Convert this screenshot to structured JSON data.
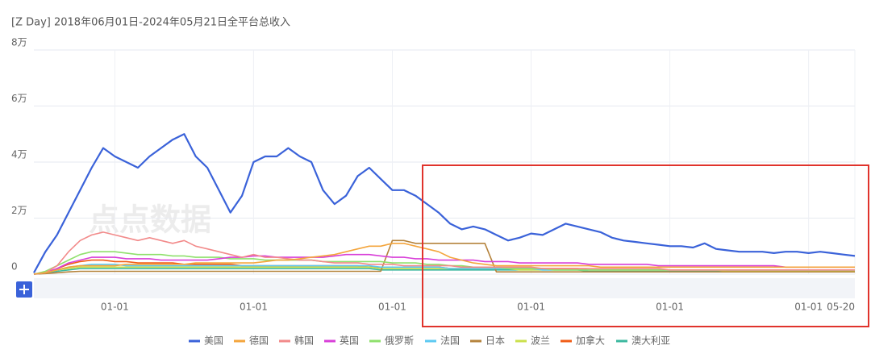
{
  "chart_data": {
    "type": "line",
    "title": "[Z Day]  2018年06月01日-2024年05月21日全平台总收入",
    "watermark": "点点数据",
    "categories": [
      null,
      null,
      null,
      null,
      null,
      null,
      null,
      "01-01",
      null,
      null,
      null,
      null,
      null,
      null,
      null,
      null,
      null,
      null,
      null,
      "01-01",
      null,
      null,
      null,
      null,
      null,
      null,
      null,
      null,
      null,
      null,
      null,
      "01-01",
      null,
      null,
      null,
      null,
      null,
      null,
      null,
      null,
      null,
      null,
      null,
      "01-01",
      null,
      null,
      null,
      null,
      null,
      null,
      null,
      null,
      null,
      null,
      null,
      "01-01",
      null,
      null,
      null,
      null,
      null,
      null,
      null,
      null,
      null,
      null,
      null,
      "01-01",
      null,
      null,
      null,
      "05-20"
    ],
    "ylim": [
      0,
      80000
    ],
    "yticks": [
      0,
      {
        "value": 20000,
        "label": "2万"
      },
      {
        "value": 40000,
        "label": "4万"
      },
      {
        "value": 60000,
        "label": "6万"
      },
      {
        "value": 80000,
        "label": "8万"
      }
    ],
    "grid": true,
    "legend": "bottom",
    "series": [
      {
        "name": "美国",
        "color": "#3a62d9",
        "values": [
          500,
          8000,
          14000,
          22000,
          30000,
          38000,
          45000,
          42000,
          40000,
          38000,
          42000,
          45000,
          48000,
          50000,
          42000,
          38000,
          30000,
          22000,
          28000,
          40000,
          42000,
          42000,
          45000,
          42000,
          40000,
          30000,
          25000,
          28000,
          35000,
          38000,
          34000,
          30000,
          30000,
          28000,
          25000,
          22000,
          18000,
          16000,
          17000,
          16000,
          14000,
          12000,
          13000,
          14500,
          14000,
          16000,
          18000,
          17000,
          16000,
          15000,
          13000,
          12000,
          11500,
          11000,
          10500,
          10000,
          10000,
          9500,
          11000,
          9000,
          8500,
          8000,
          8000,
          8000,
          7500,
          8000,
          8000,
          7500,
          8000,
          7500,
          7000,
          6500
        ]
      },
      {
        "name": "德国",
        "color": "#f4a53c",
        "values": [
          0,
          500,
          1500,
          2500,
          3000,
          3000,
          3000,
          3000,
          3500,
          3500,
          3500,
          3500,
          3500,
          3500,
          4000,
          4000,
          4000,
          4000,
          4000,
          4000,
          4500,
          5000,
          5000,
          5500,
          6000,
          6500,
          7000,
          8000,
          9000,
          10000,
          10000,
          11000,
          11000,
          10000,
          9000,
          8000,
          6000,
          5000,
          4000,
          3500,
          3000,
          3000,
          3000,
          3000,
          3000,
          3000,
          3000,
          3000,
          3000,
          2500,
          2500,
          2500,
          2500,
          2500,
          2500,
          2500,
          2500,
          2500,
          2500,
          2500,
          2500,
          2500,
          2500,
          2500,
          2500,
          2500,
          2500,
          2500,
          2500,
          2500,
          2500,
          2500
        ]
      },
      {
        "name": "韩国",
        "color": "#f28a8a",
        "values": [
          0,
          500,
          3000,
          8000,
          12000,
          14000,
          15000,
          14000,
          13000,
          12000,
          13000,
          12000,
          11000,
          12000,
          10000,
          9000,
          8000,
          7000,
          6000,
          7000,
          6000,
          6000,
          5500,
          5000,
          5000,
          4500,
          4000,
          4000,
          4000,
          3500,
          3500,
          3500,
          3000,
          3000,
          3000,
          3000,
          3000,
          2500,
          2500,
          2500,
          2500,
          2500,
          2500,
          2500,
          2000,
          2000,
          2000,
          2000,
          2000,
          2000,
          2000,
          2000,
          2000,
          2000,
          2000,
          1500,
          1500,
          1500,
          1500,
          1500,
          1500,
          1500,
          1500,
          1500,
          1500,
          1500,
          1500,
          1500,
          1500,
          1500,
          1500,
          1500
        ]
      },
      {
        "name": "英国",
        "color": "#d83fd8",
        "values": [
          0,
          500,
          2000,
          4000,
          5000,
          6000,
          6000,
          6000,
          5500,
          5500,
          5500,
          5000,
          5000,
          5000,
          5000,
          5000,
          5500,
          6000,
          6000,
          6500,
          6500,
          6000,
          6000,
          6000,
          6000,
          6000,
          6500,
          7000,
          7000,
          7000,
          6500,
          6000,
          6000,
          5500,
          5500,
          5000,
          5000,
          5000,
          5000,
          4500,
          4500,
          4500,
          4000,
          4000,
          4000,
          4000,
          4000,
          4000,
          3500,
          3500,
          3500,
          3500,
          3500,
          3500,
          3000,
          3000,
          3000,
          3000,
          3000,
          3000,
          3000,
          3000,
          3000,
          3000,
          3000,
          2500,
          2500,
          2500,
          2500,
          2500,
          2500,
          2500
        ]
      },
      {
        "name": "俄罗斯",
        "color": "#8fe06c",
        "values": [
          0,
          1000,
          3000,
          5000,
          7000,
          8000,
          8000,
          8000,
          7500,
          7000,
          7000,
          7000,
          6500,
          6500,
          6000,
          6000,
          6000,
          5500,
          5500,
          5500,
          5000,
          5000,
          5000,
          5000,
          5000,
          4500,
          4500,
          4500,
          4500,
          4500,
          4500,
          4000,
          4000,
          4000,
          3500,
          3500,
          3000,
          3000,
          2500,
          2500,
          2500,
          2000,
          2000,
          2000,
          2000,
          1500,
          1500,
          1500,
          1500,
          1500,
          1500,
          1500,
          1500,
          1500,
          1500,
          1500,
          1500,
          1500,
          1500,
          1500,
          1500,
          1500,
          1500,
          1500,
          1500,
          1500,
          1500,
          1500,
          1500,
          1500,
          1500,
          1500
        ]
      },
      {
        "name": "法国",
        "color": "#5cc9f2",
        "values": [
          0,
          500,
          1500,
          2500,
          3000,
          3500,
          3500,
          3500,
          3000,
          3000,
          3000,
          3000,
          3000,
          3000,
          3000,
          3000,
          3000,
          3000,
          3000,
          3000,
          3000,
          3000,
          3000,
          3000,
          3000,
          3000,
          3000,
          3000,
          3000,
          3000,
          2500,
          2500,
          2500,
          2500,
          2500,
          2500,
          2000,
          2000,
          2000,
          2000,
          2000,
          2000,
          2000,
          2000,
          1500,
          1500,
          1500,
          1500,
          1500,
          1500,
          1500,
          1500,
          1500,
          1500,
          1500,
          1500,
          1500,
          1500,
          1500,
          1500,
          1500,
          1500,
          1500,
          1500,
          1500,
          1500,
          1500,
          1500,
          1500,
          1500,
          1500,
          1500
        ]
      },
      {
        "name": "日本",
        "color": "#b5833c",
        "values": [
          0,
          200,
          500,
          800,
          1000,
          1000,
          1000,
          1000,
          1000,
          1000,
          1000,
          1000,
          1000,
          1000,
          1000,
          1000,
          1000,
          1000,
          1000,
          1000,
          1000,
          1000,
          1000,
          1000,
          1000,
          1000,
          1000,
          1000,
          1000,
          1000,
          1000,
          12000,
          12000,
          11000,
          11000,
          11000,
          11000,
          11000,
          11000,
          11000,
          800,
          800,
          800,
          800,
          800,
          800,
          800,
          800,
          800,
          800,
          800,
          800,
          800,
          800,
          800,
          800,
          800,
          800,
          800,
          800,
          800,
          800,
          800,
          800,
          800,
          800,
          800,
          800,
          800,
          800,
          800,
          800
        ]
      },
      {
        "name": "波兰",
        "color": "#cbe04c",
        "values": [
          0,
          500,
          1500,
          2000,
          2500,
          2500,
          2500,
          2500,
          2500,
          2500,
          2500,
          2500,
          2500,
          2500,
          2500,
          2500,
          2500,
          2500,
          2500,
          2500,
          2500,
          2500,
          2500,
          2500,
          2500,
          2500,
          2500,
          2500,
          2500,
          2500,
          2000,
          2000,
          2000,
          2000,
          2000,
          2000,
          2000,
          2000,
          2000,
          2000,
          2000,
          2000,
          1500,
          1500,
          1500,
          1500,
          1500,
          1500,
          1500,
          1500,
          1500,
          1500,
          1500,
          1500,
          1500,
          1500,
          1500,
          1500,
          1500,
          1500,
          1000,
          1000,
          1000,
          1000,
          1000,
          1000,
          1000,
          1000,
          1000,
          1000,
          1000,
          1000
        ]
      },
      {
        "name": "加拿大",
        "color": "#f05c16",
        "values": [
          0,
          500,
          2000,
          3500,
          4500,
          5000,
          5000,
          4500,
          4500,
          4000,
          4000,
          4000,
          4000,
          3500,
          3500,
          3500,
          3500,
          3500,
          3000,
          3000,
          3000,
          3000,
          3000,
          3000,
          3000,
          3000,
          3000,
          3000,
          3000,
          2500,
          2500,
          2500,
          2500,
          2500,
          2500,
          2500,
          2000,
          2000,
          2000,
          2000,
          2000,
          2000,
          2000,
          2000,
          2000,
          2000,
          2000,
          2000,
          1500,
          1500,
          1500,
          1500,
          1500,
          1500,
          1500,
          1500,
          1500,
          1500,
          1500,
          1500,
          1500,
          1500,
          1500,
          1500,
          1500,
          1500,
          1500,
          1500,
          1500,
          1500,
          1500,
          1500
        ]
      },
      {
        "name": "澳大利亚",
        "color": "#3bb89f",
        "values": [
          0,
          300,
          1000,
          1500,
          2000,
          2000,
          2000,
          2000,
          2000,
          2000,
          2000,
          2000,
          2000,
          2000,
          2000,
          2000,
          2000,
          2000,
          2000,
          2000,
          2000,
          2000,
          2000,
          2000,
          2000,
          2000,
          2000,
          2000,
          2000,
          2000,
          1500,
          1500,
          1500,
          1500,
          1500,
          1500,
          1500,
          1500,
          1500,
          1500,
          1500,
          1500,
          1500,
          1500,
          1500,
          1500,
          1500,
          1500,
          1000,
          1000,
          1000,
          1000,
          1000,
          1000,
          1000,
          1000,
          1000,
          1000,
          1000,
          1000,
          1000,
          1000,
          1000,
          1000,
          1000,
          1000,
          1000,
          1000,
          1000,
          1000,
          1000,
          1000
        ]
      }
    ]
  }
}
